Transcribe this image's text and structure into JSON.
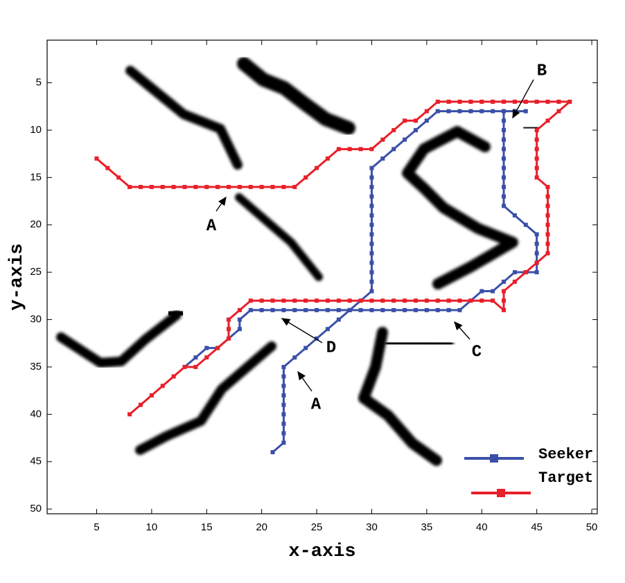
{
  "chart_data": {
    "type": "line",
    "x_label": "x-axis",
    "y_label": "y-axis",
    "xlim": [
      0.5,
      50.5
    ],
    "ylim": [
      0.5,
      50.5
    ],
    "y_inverted": true,
    "xticks": [
      5,
      10,
      15,
      20,
      25,
      30,
      35,
      40,
      45,
      50
    ],
    "yticks": [
      5,
      10,
      15,
      20,
      25,
      30,
      35,
      40,
      45,
      50
    ],
    "legend": "lower right",
    "annotations": [
      "A",
      "B",
      "C",
      "D",
      "A"
    ],
    "series": [
      {
        "name": "Seeker",
        "color": "#3a50a8",
        "x": [
          21,
          22,
          22,
          22,
          22,
          22,
          22,
          22,
          22,
          22,
          23,
          24,
          25,
          26,
          27,
          28,
          29,
          30,
          30,
          30,
          30,
          30,
          30,
          30,
          30,
          30,
          30,
          30,
          30,
          30,
          30,
          31,
          32,
          33,
          34,
          35,
          36,
          37,
          38,
          39,
          40,
          41,
          42,
          43,
          44,
          43,
          42,
          42,
          42,
          42,
          42,
          42,
          42,
          42,
          42,
          42,
          42,
          43,
          44,
          45,
          45,
          45,
          45,
          45,
          44,
          43,
          42,
          41,
          40,
          39,
          38,
          37,
          36,
          35,
          34,
          33,
          32,
          31,
          30,
          29,
          28,
          27,
          26,
          25,
          24,
          23,
          22,
          21,
          20,
          19,
          18,
          18,
          17,
          16,
          15,
          14,
          13
        ],
        "values": [
          44,
          43,
          42,
          41,
          40,
          39,
          38,
          37,
          36,
          35,
          34,
          33,
          32,
          31,
          30,
          29,
          28,
          27,
          26,
          25,
          24,
          23,
          22,
          21,
          20,
          19,
          18,
          17,
          16,
          15,
          14,
          13,
          12,
          11,
          10,
          9,
          8,
          8,
          8,
          8,
          8,
          8,
          8,
          8,
          8,
          8,
          8,
          9,
          10,
          11,
          12,
          13,
          14,
          15,
          16,
          17,
          18,
          19,
          20,
          21,
          22,
          23,
          24,
          25,
          25,
          25,
          26,
          27,
          27,
          28,
          29,
          29,
          29,
          29,
          29,
          29,
          29,
          29,
          29,
          29,
          29,
          29,
          29,
          29,
          29,
          29,
          29,
          29,
          29,
          29,
          30,
          31,
          32,
          33,
          33,
          34,
          35
        ]
      },
      {
        "name": "Target",
        "color": "#e8202a",
        "x": [
          5,
          6,
          7,
          8,
          9,
          10,
          11,
          12,
          13,
          14,
          15,
          16,
          17,
          18,
          19,
          20,
          21,
          22,
          23,
          24,
          25,
          26,
          27,
          28,
          29,
          30,
          31,
          32,
          33,
          34,
          35,
          36,
          37,
          38,
          39,
          40,
          41,
          42,
          43,
          44,
          45,
          46,
          47,
          48,
          47,
          46,
          45,
          45,
          45,
          45,
          45,
          45,
          46,
          46,
          46,
          46,
          46,
          46,
          46,
          46,
          45,
          44,
          43,
          42,
          42,
          42,
          41,
          40,
          39,
          38,
          37,
          36,
          35,
          34,
          33,
          32,
          31,
          30,
          29,
          28,
          27,
          26,
          25,
          24,
          23,
          22,
          21,
          20,
          19,
          18,
          17,
          17,
          17,
          16,
          15,
          14,
          13,
          12,
          11,
          10,
          9,
          8
        ],
        "values": [
          13,
          14,
          15,
          16,
          16,
          16,
          16,
          16,
          16,
          16,
          16,
          16,
          16,
          16,
          16,
          16,
          16,
          16,
          16,
          15,
          14,
          13,
          12,
          12,
          12,
          12,
          11,
          10,
          9,
          9,
          8,
          7,
          7,
          7,
          7,
          7,
          7,
          7,
          7,
          7,
          7,
          7,
          7,
          7,
          8,
          9,
          10,
          11,
          12,
          13,
          14,
          15,
          16,
          17,
          18,
          19,
          20,
          21,
          22,
          23,
          24,
          25,
          26,
          27,
          28,
          29,
          28,
          28,
          28,
          28,
          28,
          28,
          28,
          28,
          28,
          28,
          28,
          28,
          28,
          28,
          28,
          28,
          28,
          28,
          28,
          28,
          28,
          28,
          28,
          29,
          30,
          31,
          32,
          33,
          34,
          35,
          35,
          36,
          37,
          38,
          39,
          40
        ]
      }
    ]
  }
}
